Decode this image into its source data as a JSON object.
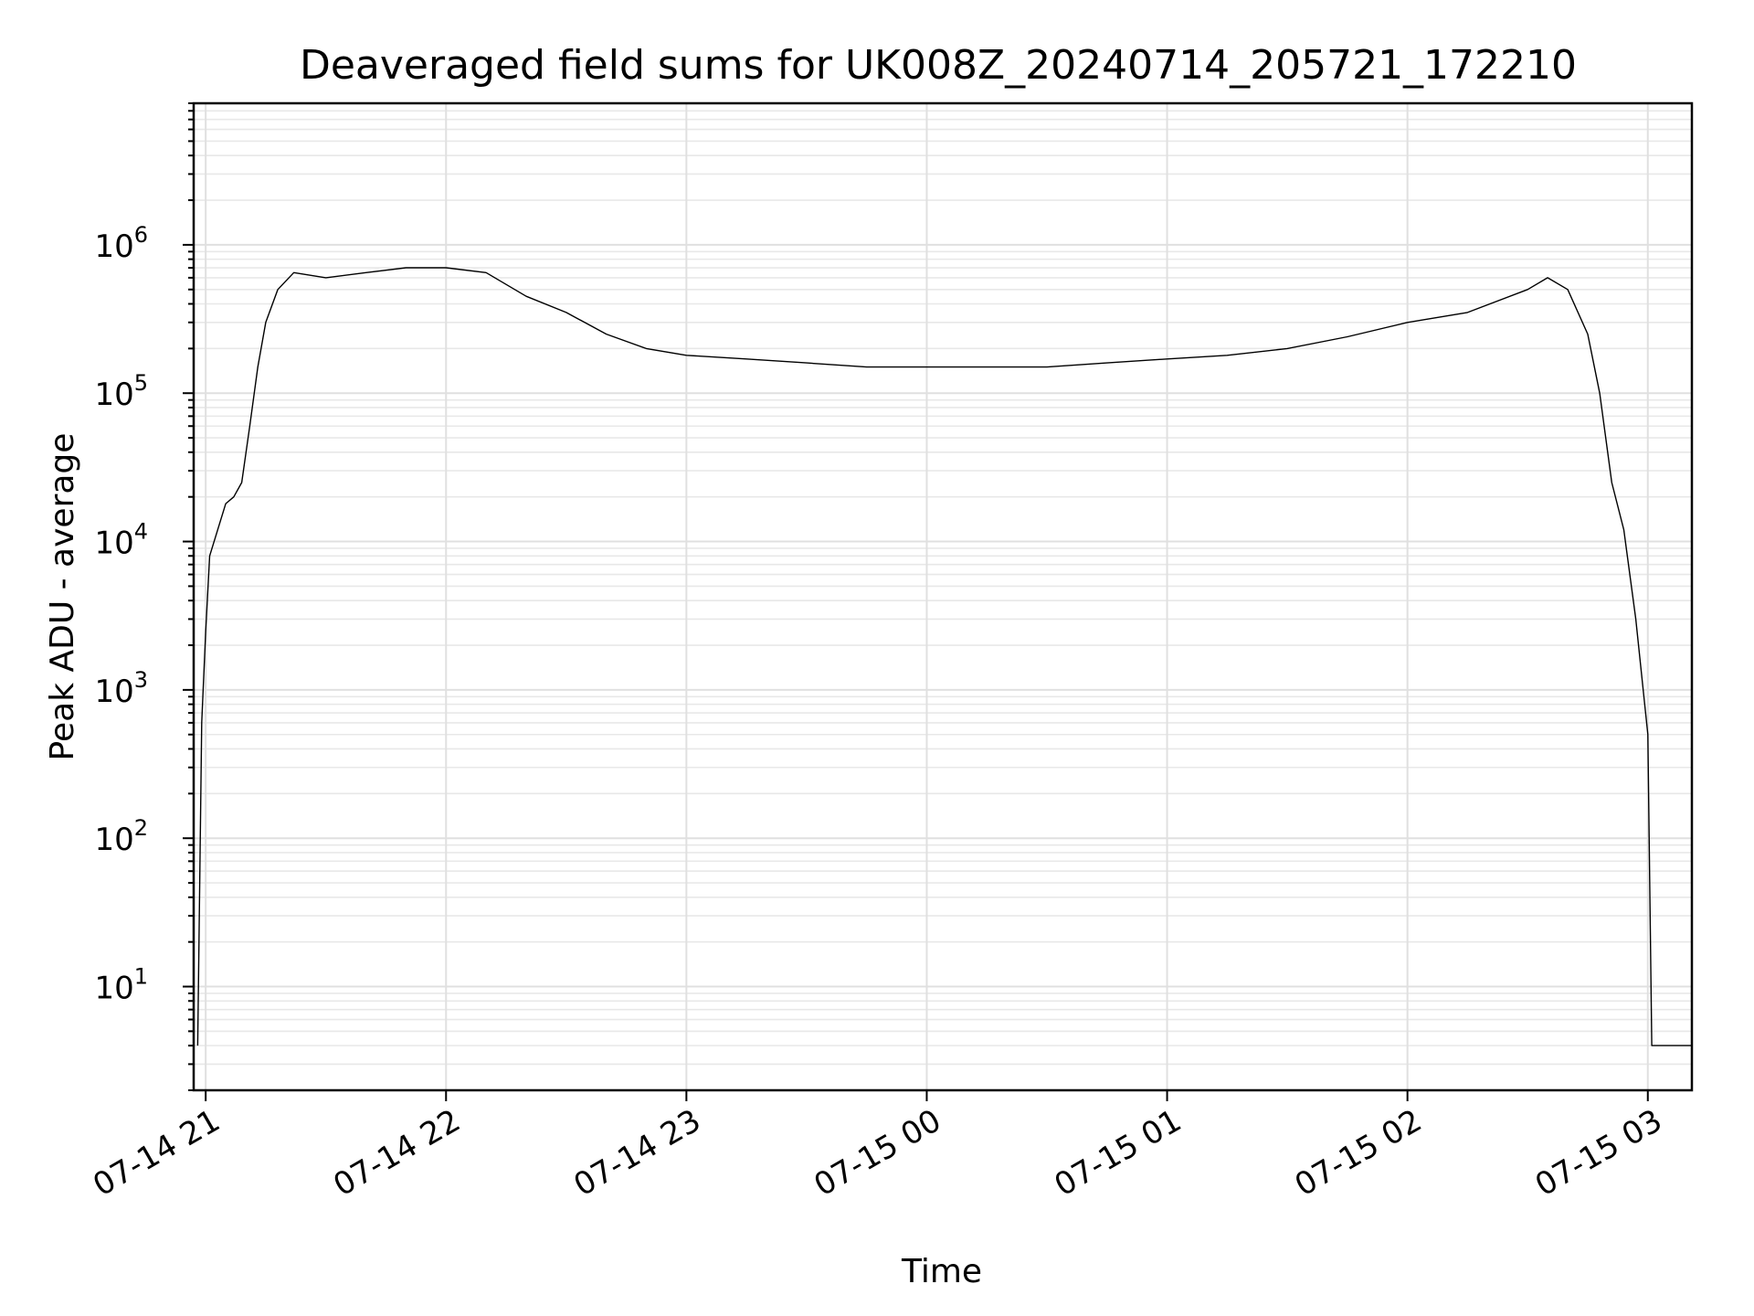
{
  "chart_data": {
    "type": "line",
    "title": "Deaveraged field sums for UK008Z_20240714_205721_172210",
    "xlabel": "Time",
    "ylabel": "Peak ADU - average",
    "yscale": "log",
    "ylim": [
      2,
      9000000
    ],
    "xlim": [
      "2024-07-14 20:57",
      "2024-07-15 03:11"
    ],
    "grid": true,
    "x_tick_labels": [
      "07-14 21",
      "07-14 22",
      "07-14 23",
      "07-15 00",
      "07-15 01",
      "07-15 02",
      "07-15 03"
    ],
    "x_ticks": [
      "2024-07-14 21:00",
      "2024-07-14 22:00",
      "2024-07-14 23:00",
      "2024-07-15 00:00",
      "2024-07-15 01:00",
      "2024-07-15 02:00",
      "2024-07-15 03:00"
    ],
    "y_ticks": [
      {
        "value": 10,
        "base": "10",
        "exp": "1"
      },
      {
        "value": 100,
        "base": "10",
        "exp": "2"
      },
      {
        "value": 1000,
        "base": "10",
        "exp": "3"
      },
      {
        "value": 10000,
        "base": "10",
        "exp": "4"
      },
      {
        "value": 100000,
        "base": "10",
        "exp": "5"
      },
      {
        "value": 1000000,
        "base": "10",
        "exp": "6"
      }
    ],
    "series": [
      {
        "color": "#000000",
        "points": [
          [
            "2024-07-14 20:58",
            4
          ],
          [
            "2024-07-14 20:59",
            600
          ],
          [
            "2024-07-14 21:00",
            2500
          ],
          [
            "2024-07-14 21:01",
            8000
          ],
          [
            "2024-07-14 21:03",
            12000
          ],
          [
            "2024-07-14 21:05",
            18000
          ],
          [
            "2024-07-14 21:07",
            20000
          ],
          [
            "2024-07-14 21:09",
            25000
          ],
          [
            "2024-07-14 21:11",
            60000
          ],
          [
            "2024-07-14 21:13",
            150000
          ],
          [
            "2024-07-14 21:15",
            300000
          ],
          [
            "2024-07-14 21:18",
            500000
          ],
          [
            "2024-07-14 21:22",
            650000
          ],
          [
            "2024-07-14 21:30",
            600000
          ],
          [
            "2024-07-14 21:40",
            650000
          ],
          [
            "2024-07-14 21:50",
            700000
          ],
          [
            "2024-07-14 22:00",
            700000
          ],
          [
            "2024-07-14 22:10",
            650000
          ],
          [
            "2024-07-14 22:20",
            450000
          ],
          [
            "2024-07-14 22:30",
            350000
          ],
          [
            "2024-07-14 22:40",
            250000
          ],
          [
            "2024-07-14 22:50",
            200000
          ],
          [
            "2024-07-14 23:00",
            180000
          ],
          [
            "2024-07-14 23:15",
            170000
          ],
          [
            "2024-07-14 23:30",
            160000
          ],
          [
            "2024-07-14 23:45",
            150000
          ],
          [
            "2024-07-15 00:00",
            150000
          ],
          [
            "2024-07-15 00:15",
            150000
          ],
          [
            "2024-07-15 00:30",
            150000
          ],
          [
            "2024-07-15 00:45",
            160000
          ],
          [
            "2024-07-15 01:00",
            170000
          ],
          [
            "2024-07-15 01:15",
            180000
          ],
          [
            "2024-07-15 01:30",
            200000
          ],
          [
            "2024-07-15 01:45",
            240000
          ],
          [
            "2024-07-15 02:00",
            300000
          ],
          [
            "2024-07-15 02:15",
            350000
          ],
          [
            "2024-07-15 02:30",
            500000
          ],
          [
            "2024-07-15 02:35",
            600000
          ],
          [
            "2024-07-15 02:40",
            500000
          ],
          [
            "2024-07-15 02:45",
            250000
          ],
          [
            "2024-07-15 02:48",
            100000
          ],
          [
            "2024-07-15 02:51",
            25000
          ],
          [
            "2024-07-15 02:54",
            12000
          ],
          [
            "2024-07-15 02:57",
            3000
          ],
          [
            "2024-07-15 03:00",
            500
          ],
          [
            "2024-07-15 03:01",
            4
          ],
          [
            "2024-07-15 03:11",
            4
          ]
        ]
      }
    ]
  }
}
